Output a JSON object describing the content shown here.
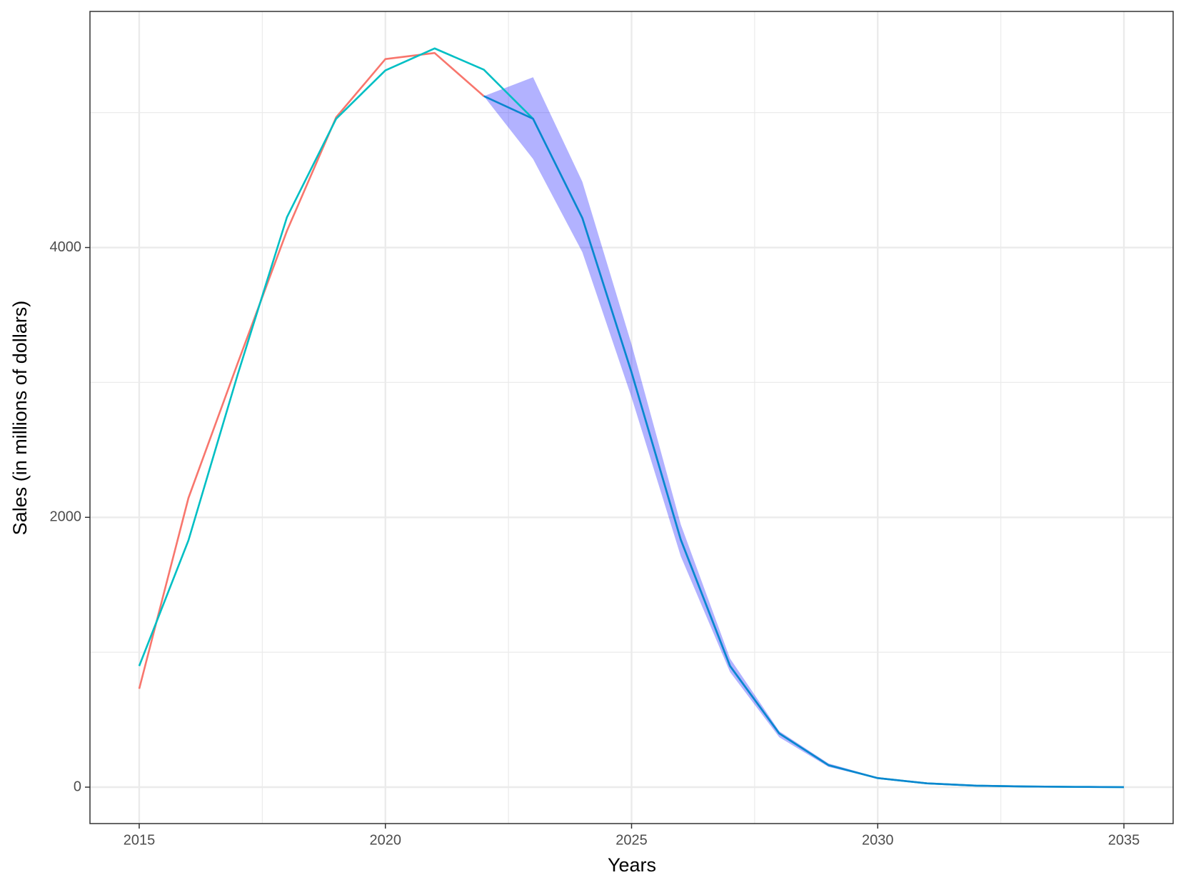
{
  "chart_data": {
    "type": "line",
    "x_label": "Years",
    "y_label": "Sales (in millions of dollars)",
    "x": [
      2015,
      2016,
      2017,
      2018,
      2019,
      2020,
      2021,
      2022,
      2023,
      2024,
      2025,
      2026,
      2027,
      2028,
      2029,
      2030,
      2031,
      2032,
      2033,
      2034,
      2035
    ],
    "series": [
      {
        "color": "#F8766D",
        "values": [
          729,
          2143,
          3142,
          4123,
          4965,
          5397,
          5442,
          5122,
          null,
          null,
          null,
          null,
          null,
          null,
          null,
          null,
          null,
          null,
          null,
          null,
          null
        ]
      },
      {
        "color": "#00BFC4",
        "values": [
          898,
          1829,
          3058,
          4224,
          4954,
          5313,
          5476,
          5318,
          4954,
          4219,
          3074,
          1834,
          898,
          398,
          163,
          67,
          28,
          11,
          5,
          2,
          0
        ]
      },
      {
        "color": "#0A86CF",
        "values": [
          null,
          null,
          null,
          null,
          null,
          null,
          null,
          5122,
          4954,
          4219,
          3074,
          1834,
          898,
          398,
          163,
          67,
          28,
          11,
          5,
          2,
          0
        ]
      }
    ],
    "band": {
      "color": "#0000FF",
      "opacity": 0.3,
      "lower": [
        null,
        null,
        null,
        null,
        null,
        null,
        null,
        5122,
        4656,
        3966,
        2889,
        1711,
        853,
        370,
        150,
        62,
        26,
        10,
        5,
        2,
        0
      ],
      "upper": [
        null,
        null,
        null,
        null,
        null,
        null,
        null,
        5122,
        5262,
        4488,
        3282,
        1947,
        954,
        415,
        176,
        72,
        30,
        12,
        5,
        2,
        0
      ]
    },
    "xlim": [
      2014,
      2036
    ],
    "ylim": [
      -270,
      5750
    ],
    "xticks": [
      2015,
      2020,
      2025,
      2030,
      2035
    ],
    "yticks": [
      0,
      2000,
      4000
    ],
    "grid": true
  }
}
